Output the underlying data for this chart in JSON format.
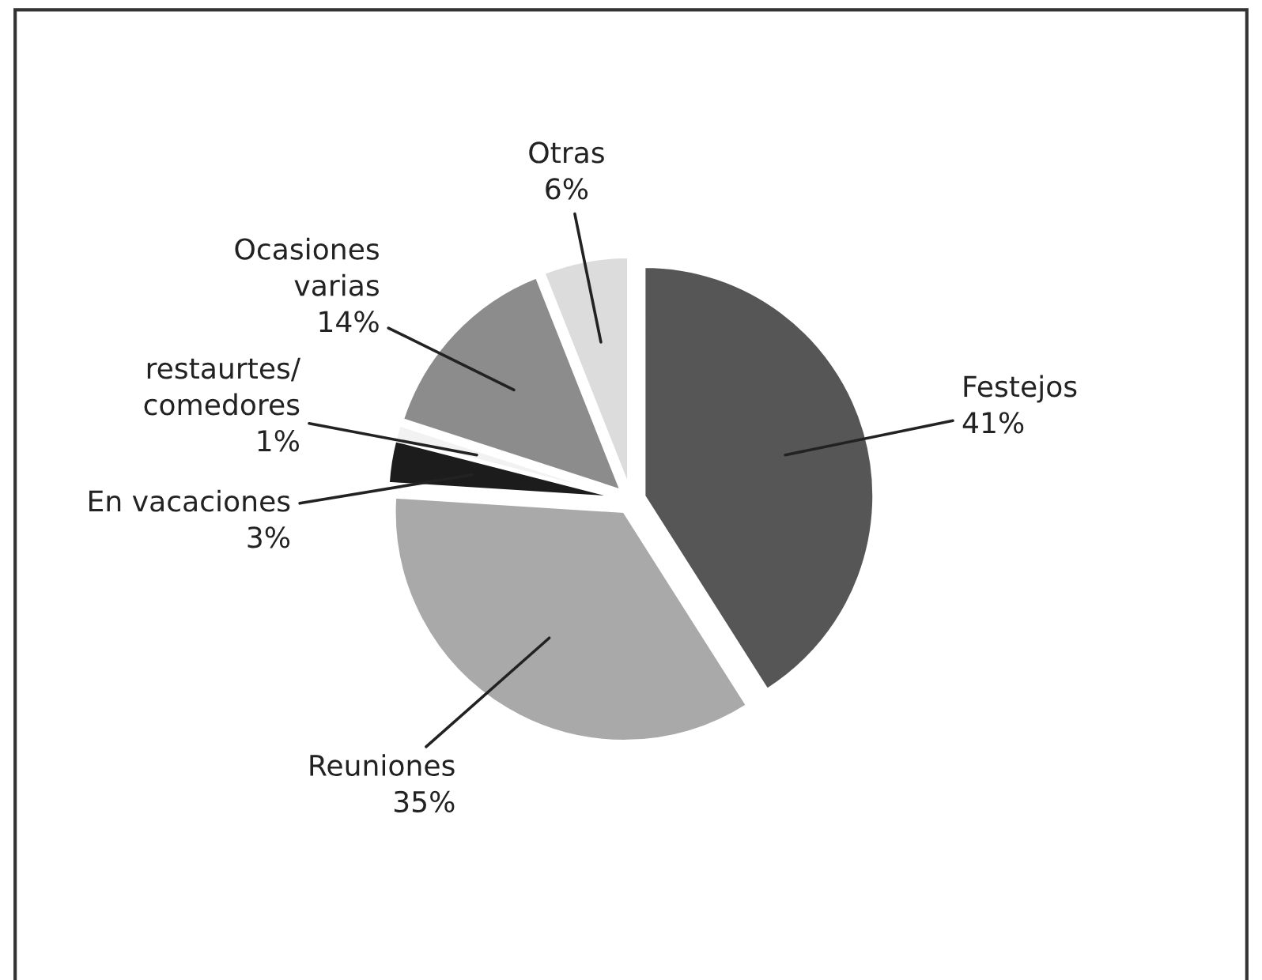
{
  "chart_data": {
    "type": "pie",
    "categories": [
      "Festejos",
      "Reuniones",
      "En vacaciones",
      "restaurtes/\ncomedores",
      "Ocasiones\nvarias",
      "Otras"
    ],
    "values": [
      41,
      35,
      3,
      1,
      14,
      6
    ],
    "value_labels": [
      "41%",
      "35%",
      "3%",
      "1%",
      "14%",
      "6%"
    ],
    "colors": [
      "#565656",
      "#a9a9a9",
      "#1c1c1c",
      "#f2f2f2",
      "#8c8c8c",
      "#dcdcdc"
    ],
    "legend": false
  }
}
